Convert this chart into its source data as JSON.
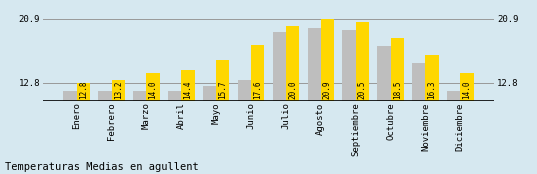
{
  "months": [
    "Enero",
    "Febrero",
    "Marzo",
    "Abril",
    "Mayo",
    "Junio",
    "Julio",
    "Agosto",
    "Septiembre",
    "Octubre",
    "Noviembre",
    "Diciembre"
  ],
  "values": [
    12.8,
    13.2,
    14.0,
    14.4,
    15.7,
    17.6,
    20.0,
    20.9,
    20.5,
    18.5,
    16.3,
    14.0
  ],
  "gray_values": [
    11.8,
    11.8,
    11.8,
    11.8,
    12.4,
    13.2,
    19.2,
    19.8,
    19.5,
    17.5,
    15.3,
    11.8
  ],
  "bar_color_yellow": "#FFD700",
  "bar_color_gray": "#BEBEBE",
  "background_color": "#D6E8F0",
  "title": "Temperaturas Medias en agullent",
  "base": 10.5,
  "ylim_min": 10.5,
  "ylim_max": 22.2,
  "hline_lo": 12.8,
  "hline_hi": 20.9,
  "value_fontsize": 5.5,
  "title_fontsize": 7.5,
  "tick_fontsize": 6.5
}
